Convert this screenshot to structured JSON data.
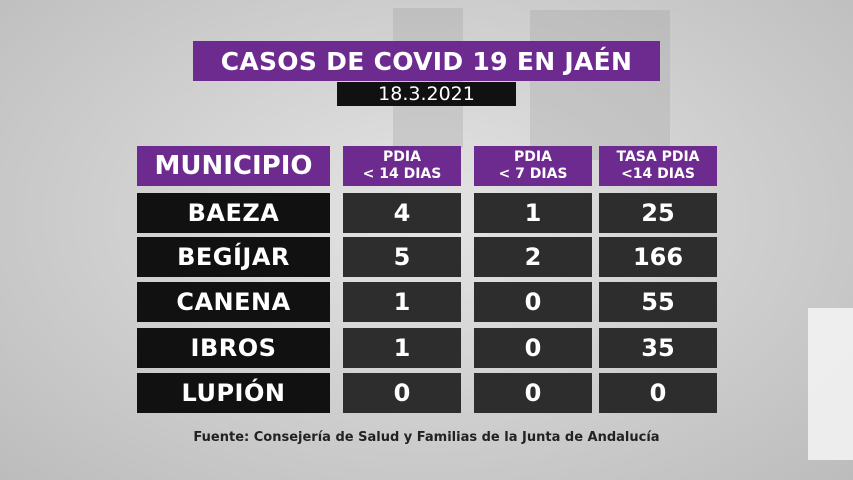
{
  "title": "CASOS DE COVID 19 EN JAÉN",
  "date": "18.3.2021",
  "columns": {
    "municipio": "MUNICIPIO",
    "pdia14_line1": "PDIA",
    "pdia14_line2": "< 14 DIAS",
    "pdia7_line1": "PDIA",
    "pdia7_line2": "< 7 DIAS",
    "tasa_line1": "TASA PDIA",
    "tasa_line2": "<14 DIAS"
  },
  "rows": [
    {
      "municipio": "BAEZA",
      "pdia14": "4",
      "pdia7": "1",
      "tasa": "25"
    },
    {
      "municipio": "BEGÍJAR",
      "pdia14": "5",
      "pdia7": "2",
      "tasa": "166"
    },
    {
      "municipio": "CANENA",
      "pdia14": "1",
      "pdia7": "0",
      "tasa": "55"
    },
    {
      "municipio": "IBROS",
      "pdia14": "1",
      "pdia7": "0",
      "tasa": "35"
    },
    {
      "municipio": "LUPIÓN",
      "pdia14": "0",
      "pdia7": "0",
      "tasa": "0"
    }
  ],
  "source": "Fuente: Consejería de Salud y Familias de la Junta de Andalucía",
  "colors": {
    "accent": "#6d2b90",
    "dark_cell": "#111111",
    "num_cell": "#2d2d2d"
  }
}
